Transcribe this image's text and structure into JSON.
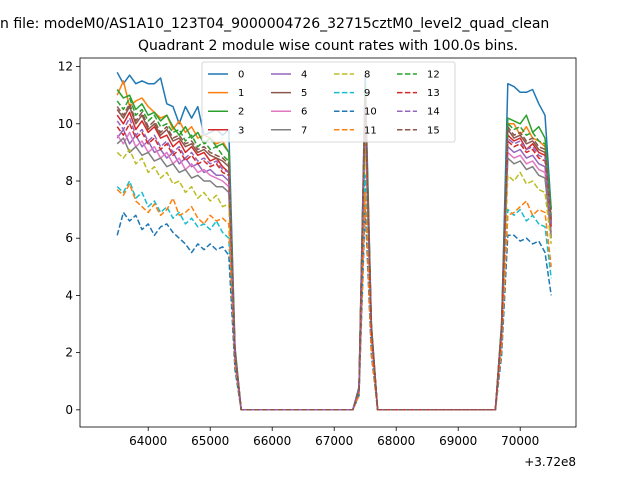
{
  "chart_data": {
    "type": "line",
    "suptitle": "n file: modeM0/AS1A10_123T04_9000004726_32715cztM0_level2_quad_clean",
    "title": "Quadrant 2 module wise count rates with 100.0s bins.",
    "xlabel": "",
    "ylabel": "",
    "xlim": [
      62900,
      70900
    ],
    "ylim": [
      -0.6,
      12.3
    ],
    "x_offset_label": "+3.72e8",
    "x_ticks": [
      64000,
      65000,
      66000,
      67000,
      68000,
      69000,
      70000
    ],
    "x_tick_labels": [
      "64000",
      "65000",
      "66000",
      "67000",
      "68000",
      "69000",
      "70000"
    ],
    "y_ticks": [
      0,
      2,
      4,
      6,
      8,
      10,
      12
    ],
    "y_tick_labels": [
      "0",
      "2",
      "4",
      "6",
      "8",
      "10",
      "12"
    ],
    "grid": false,
    "legend_position": "top-center",
    "legend_columns": 4,
    "x": [
      63500,
      63600,
      63700,
      63800,
      63900,
      64000,
      64100,
      64200,
      64300,
      64400,
      64500,
      64600,
      64700,
      64800,
      64900,
      65000,
      65100,
      65200,
      65300,
      65400,
      65500,
      65600,
      65700,
      65800,
      65900,
      66000,
      66100,
      66200,
      66300,
      66400,
      66500,
      66600,
      66700,
      66800,
      66900,
      67000,
      67100,
      67200,
      67300,
      67400,
      67500,
      67600,
      67700,
      67800,
      67900,
      68000,
      68100,
      68200,
      68300,
      68400,
      68500,
      68600,
      68700,
      68800,
      68900,
      69000,
      69100,
      69200,
      69300,
      69400,
      69500,
      69600,
      69700,
      69800,
      69900,
      70000,
      70100,
      70200,
      70300,
      70400,
      70500
    ],
    "series": [
      {
        "name": "0",
        "color": "#1f77b4",
        "dash": false,
        "values": [
          11.8,
          11.4,
          11.7,
          11.4,
          11.5,
          11.4,
          11.4,
          11.6,
          10.7,
          10.6,
          10.0,
          10.6,
          10.2,
          10.6,
          9.6,
          9.7,
          9.8,
          9.6,
          9.8,
          2.2,
          0,
          0,
          0,
          0,
          0,
          0,
          0,
          0,
          0,
          0,
          0,
          0,
          0,
          0,
          0,
          0,
          0,
          0,
          0,
          0.8,
          11.7,
          3.0,
          0,
          0,
          0,
          0,
          0,
          0,
          0,
          0,
          0,
          0,
          0,
          0,
          0,
          0,
          0,
          0,
          0,
          0,
          0,
          0,
          3.0,
          11.4,
          11.3,
          11.1,
          11.1,
          11.2,
          10.7,
          10.3,
          7.0
        ]
      },
      {
        "name": "1",
        "color": "#ff7f0e",
        "dash": false,
        "values": [
          11.0,
          11.5,
          10.6,
          10.8,
          10.9,
          10.6,
          10.4,
          10.2,
          10.3,
          9.8,
          10.1,
          9.7,
          9.9,
          9.5,
          9.6,
          9.5,
          9.3,
          9.4,
          9.0,
          2.1,
          0,
          0,
          0,
          0,
          0,
          0,
          0,
          0,
          0,
          0,
          0,
          0,
          0,
          0,
          0,
          0,
          0,
          0,
          0,
          0.7,
          11.1,
          2.9,
          0,
          0,
          0,
          0,
          0,
          0,
          0,
          0,
          0,
          0,
          0,
          0,
          0,
          0,
          0,
          0,
          0,
          0,
          0,
          0,
          2.9,
          10.0,
          10.0,
          9.6,
          9.9,
          9.5,
          9.4,
          9.2,
          6.6
        ]
      },
      {
        "name": "2",
        "color": "#2ca02c",
        "dash": false,
        "values": [
          11.2,
          10.9,
          11.0,
          10.5,
          10.7,
          10.3,
          10.4,
          10.1,
          10.3,
          9.9,
          9.6,
          9.9,
          9.5,
          9.7,
          9.3,
          9.5,
          9.2,
          9.3,
          9.0,
          2.1,
          0,
          0,
          0,
          0,
          0,
          0,
          0,
          0,
          0,
          0,
          0,
          0,
          0,
          0,
          0,
          0,
          0,
          0,
          0,
          0.7,
          11.3,
          2.9,
          0,
          0,
          0,
          0,
          0,
          0,
          0,
          0,
          0,
          0,
          0,
          0,
          0,
          0,
          0,
          0,
          0,
          0,
          0,
          0,
          3.0,
          10.2,
          10.1,
          10.0,
          10.3,
          9.7,
          9.9,
          9.5,
          7.0
        ]
      },
      {
        "name": "3",
        "color": "#d62728",
        "dash": false,
        "values": [
          10.3,
          10.0,
          10.4,
          9.8,
          10.1,
          9.7,
          9.9,
          9.5,
          9.6,
          9.2,
          9.4,
          9.0,
          9.2,
          8.9,
          9.0,
          8.7,
          8.8,
          8.5,
          8.3,
          2.0,
          0,
          0,
          0,
          0,
          0,
          0,
          0,
          0,
          0,
          0,
          0,
          0,
          0,
          0,
          0,
          0,
          0,
          0,
          0,
          0.7,
          10.8,
          2.8,
          0,
          0,
          0,
          0,
          0,
          0,
          0,
          0,
          0,
          0,
          0,
          0,
          0,
          0,
          0,
          0,
          0,
          0,
          0,
          0,
          2.8,
          9.6,
          9.4,
          9.5,
          9.1,
          9.3,
          9.0,
          8.9,
          6.5
        ]
      },
      {
        "name": "4",
        "color": "#9467bd",
        "dash": false,
        "values": [
          9.5,
          9.8,
          9.3,
          9.6,
          9.2,
          9.4,
          9.0,
          9.1,
          8.8,
          9.0,
          8.6,
          8.8,
          8.5,
          8.6,
          8.3,
          8.4,
          8.2,
          8.2,
          8.0,
          1.9,
          0,
          0,
          0,
          0,
          0,
          0,
          0,
          0,
          0,
          0,
          0,
          0,
          0,
          0,
          0,
          0,
          0,
          0,
          0,
          0.7,
          10.5,
          2.7,
          0,
          0,
          0,
          0,
          0,
          0,
          0,
          0,
          0,
          0,
          0,
          0,
          0,
          0,
          0,
          0,
          0,
          0,
          0,
          0,
          2.7,
          9.2,
          9.0,
          9.1,
          8.8,
          8.9,
          8.6,
          8.5,
          6.2
        ]
      },
      {
        "name": "5",
        "color": "#8c564b",
        "dash": false,
        "values": [
          10.5,
          10.2,
          10.6,
          10.0,
          10.3,
          9.8,
          10.0,
          9.6,
          9.8,
          9.4,
          9.5,
          9.2,
          9.3,
          9.0,
          9.1,
          8.9,
          8.8,
          8.7,
          8.5,
          2.0,
          0,
          0,
          0,
          0,
          0,
          0,
          0,
          0,
          0,
          0,
          0,
          0,
          0,
          0,
          0,
          0,
          0,
          0,
          0,
          0.7,
          11.0,
          2.8,
          0,
          0,
          0,
          0,
          0,
          0,
          0,
          0,
          0,
          0,
          0,
          0,
          0,
          0,
          0,
          0,
          0,
          0,
          0,
          0,
          2.8,
          9.8,
          9.5,
          9.6,
          9.3,
          9.4,
          9.1,
          9.0,
          6.6
        ]
      },
      {
        "name": "6",
        "color": "#e377c2",
        "dash": false,
        "values": [
          9.6,
          9.3,
          9.7,
          9.2,
          9.4,
          9.0,
          9.2,
          8.8,
          9.0,
          8.6,
          8.8,
          8.4,
          8.6,
          8.3,
          8.4,
          8.2,
          8.1,
          8.0,
          7.8,
          1.9,
          0,
          0,
          0,
          0,
          0,
          0,
          0,
          0,
          0,
          0,
          0,
          0,
          0,
          0,
          0,
          0,
          0,
          0,
          0,
          0.7,
          10.2,
          2.7,
          0,
          0,
          0,
          0,
          0,
          0,
          0,
          0,
          0,
          0,
          0,
          0,
          0,
          0,
          0,
          0,
          0,
          0,
          0,
          0,
          2.7,
          9.0,
          8.8,
          8.9,
          8.6,
          8.7,
          8.4,
          8.3,
          6.1
        ]
      },
      {
        "name": "7",
        "color": "#7f7f7f",
        "dash": false,
        "values": [
          9.3,
          9.5,
          9.0,
          9.2,
          8.9,
          9.0,
          8.7,
          8.8,
          8.5,
          8.6,
          8.3,
          8.4,
          8.1,
          8.2,
          8.0,
          8.0,
          7.8,
          7.8,
          7.6,
          1.8,
          0,
          0,
          0,
          0,
          0,
          0,
          0,
          0,
          0,
          0,
          0,
          0,
          0,
          0,
          0,
          0,
          0,
          0,
          0,
          0.6,
          10.0,
          2.6,
          0,
          0,
          0,
          0,
          0,
          0,
          0,
          0,
          0,
          0,
          0,
          0,
          0,
          0,
          0,
          0,
          0,
          0,
          0,
          0,
          2.6,
          8.8,
          8.6,
          8.7,
          8.4,
          8.5,
          8.2,
          8.1,
          6.0
        ]
      },
      {
        "name": "8",
        "color": "#bcbd22",
        "dash": true,
        "values": [
          9.0,
          8.8,
          9.1,
          8.6,
          8.8,
          8.3,
          8.5,
          8.1,
          8.3,
          7.9,
          8.0,
          7.6,
          7.8,
          7.4,
          7.6,
          7.3,
          7.5,
          7.1,
          7.2,
          1.8,
          0,
          0,
          0,
          0,
          0,
          0,
          0,
          0,
          0,
          0,
          0,
          0,
          0,
          0,
          0,
          0,
          0,
          0,
          0,
          0.6,
          9.6,
          2.5,
          0,
          0,
          0,
          0,
          0,
          0,
          0,
          0,
          0,
          0,
          0,
          0,
          0,
          0,
          0,
          0,
          0,
          0,
          0,
          0,
          2.5,
          8.2,
          8.0,
          8.3,
          7.9,
          8.0,
          7.7,
          7.6,
          5.8
        ]
      },
      {
        "name": "9",
        "color": "#17becf",
        "dash": true,
        "values": [
          7.8,
          7.6,
          8.0,
          7.4,
          7.6,
          7.1,
          7.3,
          6.9,
          7.1,
          6.7,
          6.9,
          6.5,
          6.7,
          6.4,
          6.5,
          6.3,
          6.6,
          6.2,
          6.0,
          1.5,
          0,
          0,
          0,
          0,
          0,
          0,
          0,
          0,
          0,
          0,
          0,
          0,
          0,
          0,
          0,
          0,
          0,
          0,
          0,
          0.5,
          8.2,
          2.2,
          0,
          0,
          0,
          0,
          0,
          0,
          0,
          0,
          0,
          0,
          0,
          0,
          0,
          0,
          0,
          0,
          0,
          0,
          0,
          0,
          2.2,
          7.0,
          6.8,
          7.0,
          6.6,
          6.8,
          6.5,
          6.4,
          4.6
        ]
      },
      {
        "name": "10",
        "color": "#1f77b4",
        "dash": true,
        "values": [
          6.1,
          6.9,
          6.6,
          6.8,
          6.3,
          6.5,
          6.1,
          6.4,
          6.5,
          6.2,
          6.0,
          5.8,
          5.5,
          5.8,
          5.6,
          5.8,
          5.6,
          5.7,
          5.4,
          1.4,
          0,
          0,
          0,
          0,
          0,
          0,
          0,
          0,
          0,
          0,
          0,
          0,
          0,
          0,
          0,
          0,
          0,
          0,
          0,
          0.5,
          7.1,
          1.9,
          0,
          0,
          0,
          0,
          0,
          0,
          0,
          0,
          0,
          0,
          0,
          0,
          0,
          0,
          0,
          0,
          0,
          0,
          0,
          0,
          1.9,
          6.1,
          6.1,
          5.9,
          6.0,
          5.8,
          5.9,
          5.5,
          4.0
        ]
      },
      {
        "name": "11",
        "color": "#ff7f0e",
        "dash": true,
        "values": [
          7.7,
          7.5,
          7.9,
          7.3,
          7.1,
          6.9,
          7.2,
          6.8,
          7.0,
          7.4,
          6.8,
          6.9,
          7.1,
          6.7,
          6.5,
          6.8,
          6.6,
          6.7,
          6.5,
          1.6,
          0,
          0,
          0,
          0,
          0,
          0,
          0,
          0,
          0,
          0,
          0,
          0,
          0,
          0,
          0,
          0,
          0,
          0,
          0,
          0.5,
          7.6,
          2.0,
          0,
          0,
          0,
          0,
          0,
          0,
          0,
          0,
          0,
          0,
          0,
          0,
          0,
          0,
          0,
          0,
          0,
          0,
          0,
          0,
          2.2,
          6.8,
          6.9,
          7.1,
          7.3,
          6.8,
          7.0,
          6.9,
          5.0
        ]
      },
      {
        "name": "12",
        "color": "#2ca02c",
        "dash": true,
        "values": [
          10.8,
          10.5,
          10.9,
          10.3,
          10.5,
          10.1,
          10.3,
          9.9,
          10.0,
          9.7,
          9.8,
          9.4,
          9.6,
          9.2,
          9.4,
          9.1,
          9.2,
          8.9,
          8.7,
          2.0,
          0,
          0,
          0,
          0,
          0,
          0,
          0,
          0,
          0,
          0,
          0,
          0,
          0,
          0,
          0,
          0,
          0,
          0,
          0,
          0.7,
          11.2,
          2.9,
          0,
          0,
          0,
          0,
          0,
          0,
          0,
          0,
          0,
          0,
          0,
          0,
          0,
          0,
          0,
          0,
          0,
          0,
          0,
          0,
          2.9,
          10.0,
          9.8,
          9.9,
          9.6,
          9.7,
          9.4,
          9.3,
          6.8
        ]
      },
      {
        "name": "13",
        "color": "#d62728",
        "dash": true,
        "values": [
          9.9,
          9.6,
          10.0,
          9.5,
          9.7,
          9.3,
          9.5,
          9.1,
          9.3,
          8.9,
          9.1,
          8.7,
          8.9,
          8.6,
          8.7,
          8.5,
          8.6,
          8.3,
          8.2,
          1.9,
          0,
          0,
          0,
          0,
          0,
          0,
          0,
          0,
          0,
          0,
          0,
          0,
          0,
          0,
          0,
          0,
          0,
          0,
          0,
          0.7,
          10.6,
          2.8,
          0,
          0,
          0,
          0,
          0,
          0,
          0,
          0,
          0,
          0,
          0,
          0,
          0,
          0,
          0,
          0,
          0,
          0,
          0,
          0,
          2.8,
          9.4,
          9.2,
          9.3,
          9.0,
          9.1,
          8.8,
          8.7,
          6.4
        ]
      },
      {
        "name": "14",
        "color": "#9467bd",
        "dash": true,
        "values": [
          10.1,
          9.8,
          10.2,
          9.6,
          9.8,
          9.4,
          9.6,
          9.2,
          9.4,
          9.0,
          9.2,
          8.8,
          9.0,
          8.7,
          8.8,
          8.6,
          8.7,
          8.4,
          8.3,
          1.9,
          0,
          0,
          0,
          0,
          0,
          0,
          0,
          0,
          0,
          0,
          0,
          0,
          0,
          0,
          0,
          0,
          0,
          0,
          0,
          0.7,
          10.7,
          2.8,
          0,
          0,
          0,
          0,
          0,
          0,
          0,
          0,
          0,
          0,
          0,
          0,
          0,
          0,
          0,
          0,
          0,
          0,
          0,
          0,
          2.8,
          9.5,
          9.3,
          9.4,
          9.1,
          9.2,
          8.9,
          8.8,
          6.5
        ]
      },
      {
        "name": "15",
        "color": "#8c564b",
        "dash": true,
        "values": [
          10.6,
          10.3,
          10.7,
          10.1,
          10.4,
          9.9,
          10.1,
          9.7,
          9.9,
          9.5,
          9.6,
          9.3,
          9.4,
          9.1,
          9.2,
          9.0,
          8.9,
          8.8,
          8.6,
          2.0,
          0,
          0,
          0,
          0,
          0,
          0,
          0,
          0,
          0,
          0,
          0,
          0,
          0,
          0,
          0,
          0,
          0,
          0,
          0,
          0.7,
          11.0,
          2.9,
          0,
          0,
          0,
          0,
          0,
          0,
          0,
          0,
          0,
          0,
          0,
          0,
          0,
          0,
          0,
          0,
          0,
          0,
          0,
          0,
          2.9,
          9.9,
          9.6,
          9.7,
          9.4,
          9.5,
          9.2,
          9.1,
          6.7
        ]
      }
    ]
  }
}
